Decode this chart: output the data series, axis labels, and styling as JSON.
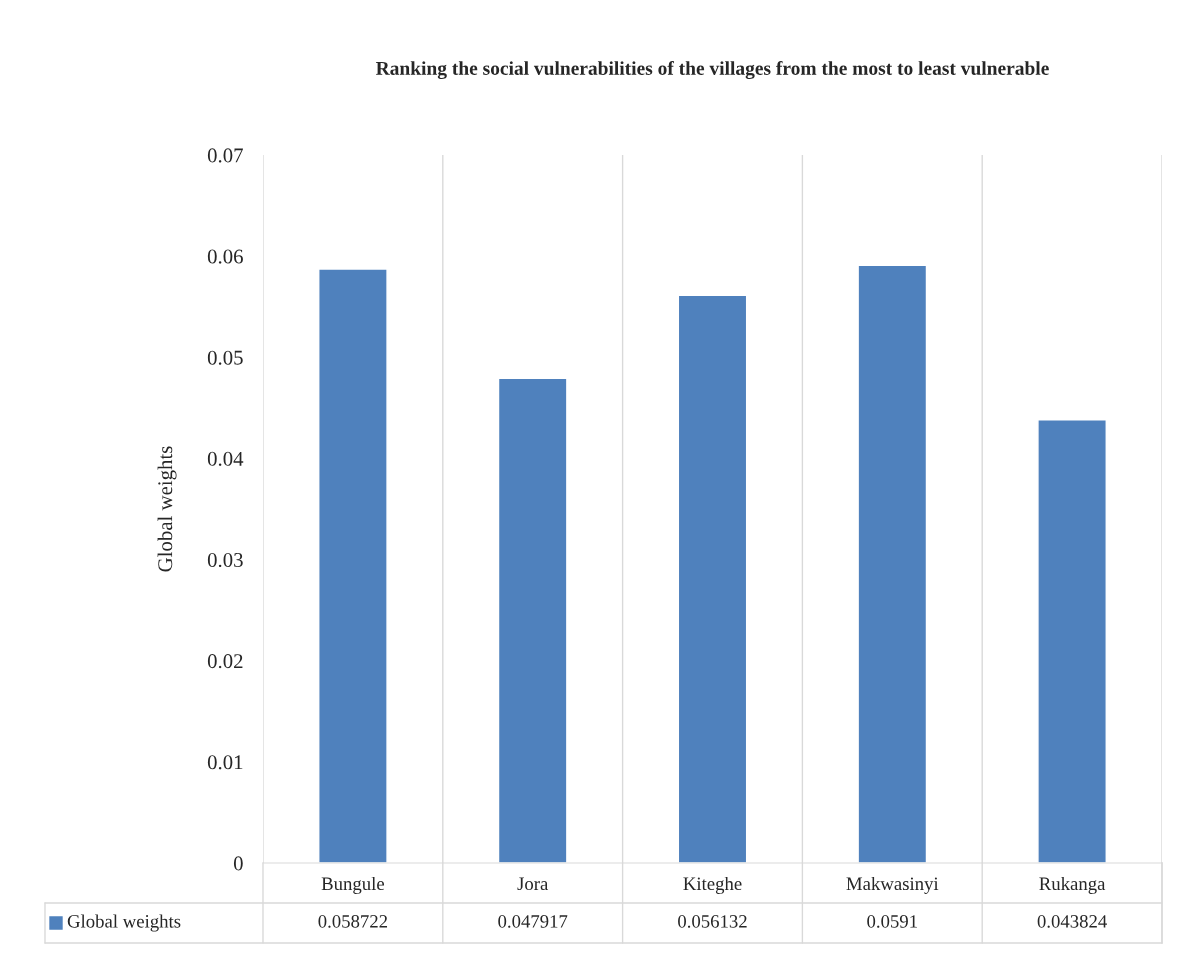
{
  "chart_data": {
    "type": "bar",
    "title": "Ranking the social vulnerabilities of the villages from the most to least vulnerable",
    "ylabel": "Global weights",
    "categories": [
      "Bungule",
      "Jora",
      "Kiteghe",
      "Makwasinyi",
      "Rukanga"
    ],
    "series": [
      {
        "name": "Global weights",
        "color": "#4f81bd",
        "values": [
          0.058722,
          0.047917,
          0.056132,
          0.0591,
          0.043824
        ]
      }
    ],
    "ylim": [
      0,
      0.07
    ],
    "yticks": [
      0,
      0.01,
      0.02,
      0.03,
      0.04,
      0.05,
      0.06,
      0.07
    ],
    "grid": "x",
    "legend": "bottom",
    "data_labels": true
  }
}
